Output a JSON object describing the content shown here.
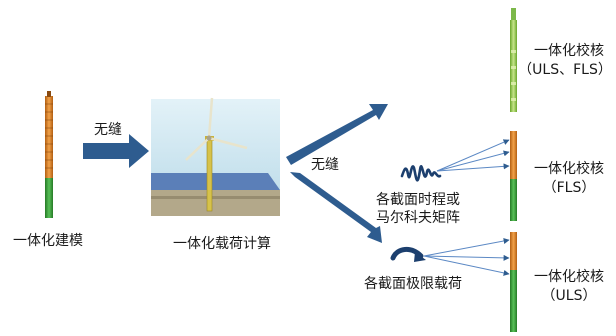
{
  "left_model": {
    "caption": "一体化建模"
  },
  "arrow_1": {
    "label": "无缝"
  },
  "center_panel": {
    "caption": "一体化载荷计算"
  },
  "arrow_2": {
    "label": "无缝"
  },
  "check_top": {
    "title": "一体化校核",
    "subtitle": "（ULS、FLS）"
  },
  "check_mid": {
    "title": "一体化校核",
    "subtitle": "（FLS）",
    "source_label_line1": "各截面时程或",
    "source_label_line2": "马尔科夫矩阵"
  },
  "check_bottom": {
    "title": "一体化校核",
    "subtitle": "（ULS）",
    "source_label": "各截面极限载荷"
  },
  "colors": {
    "arrow": "#2e5c8f",
    "sea": "#5b7fb8",
    "sky": "#cfe7f2",
    "seabed": "#b3a88a",
    "tower_green": "#3a9b3a",
    "tower_orange": "#e08a2a"
  }
}
